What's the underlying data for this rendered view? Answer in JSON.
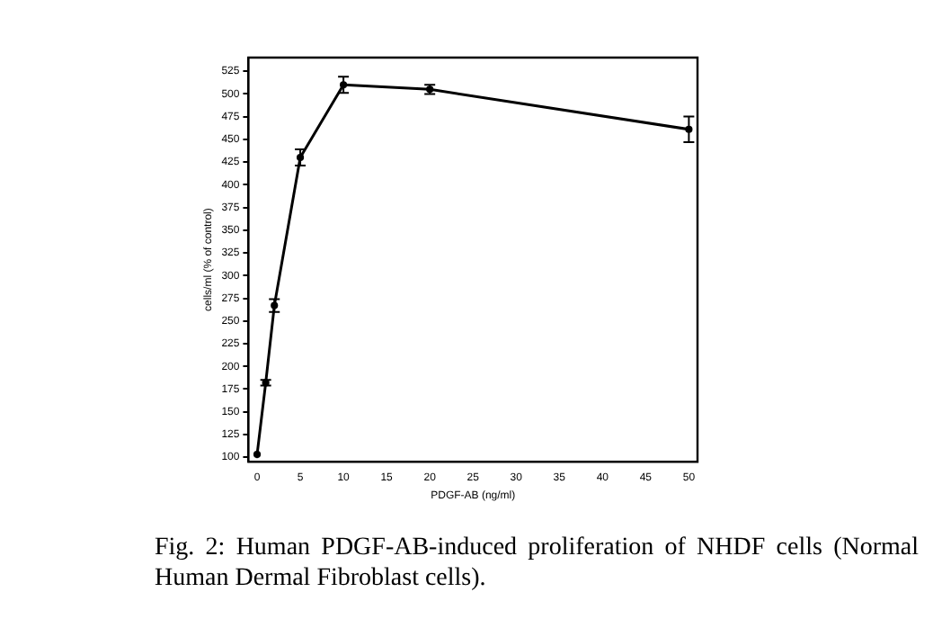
{
  "chart_data": {
    "type": "line",
    "xlabel": "PDGF-AB (ng/ml)",
    "ylabel": "cells/ml (% of control)",
    "x": [
      0,
      1,
      2,
      5,
      10,
      20,
      50
    ],
    "series": [
      {
        "color": "#000000",
        "values": [
          103,
          182,
          267,
          430,
          510,
          505,
          461
        ],
        "errors": [
          null,
          3,
          7,
          9,
          9,
          5,
          14
        ]
      }
    ],
    "xlim": [
      -1,
      51
    ],
    "xticks": [
      0,
      5,
      10,
      15,
      20,
      25,
      30,
      35,
      40,
      45,
      50
    ],
    "ylim": [
      95,
      540
    ],
    "yticks": [
      100,
      125,
      150,
      175,
      200,
      225,
      250,
      275,
      300,
      325,
      350,
      375,
      400,
      425,
      450,
      475,
      500,
      525
    ],
    "grid": false,
    "legend": false,
    "marker": "circle",
    "line_style": "solid",
    "annotations": [
      "Fig. 2: Human PDGF-AB-induced proliferation of NHDF cells (Normal Human Dermal Fibroblast cells)."
    ]
  }
}
